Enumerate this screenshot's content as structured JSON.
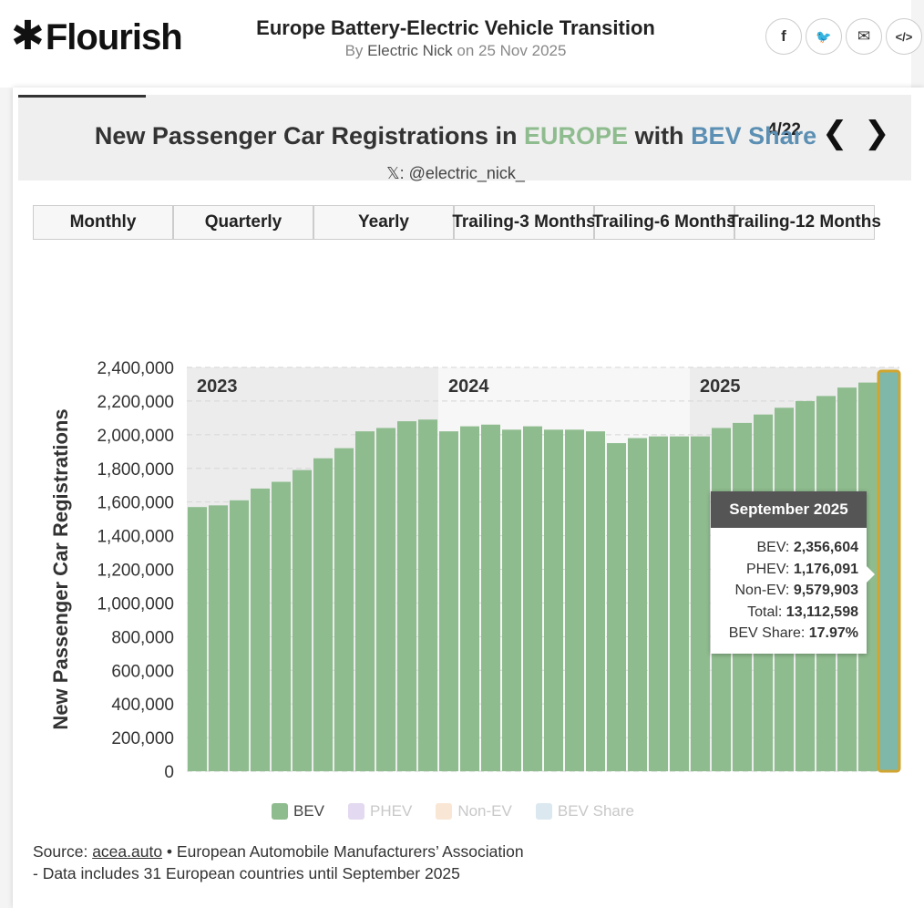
{
  "brand": {
    "logo_star": "✱",
    "logo_text": "Flourish"
  },
  "story": {
    "title": "Europe Battery-Electric Vehicle Transition",
    "by": "By",
    "author": "Electric Nick",
    "on": "on 25 Nov 2025"
  },
  "share": [
    {
      "name": "facebook-icon",
      "glyph": "f"
    },
    {
      "name": "twitter-icon",
      "glyph": "🐦"
    },
    {
      "name": "email-icon",
      "glyph": "✉"
    },
    {
      "name": "embed-icon",
      "glyph": "</>"
    }
  ],
  "nav": {
    "counter": "4/22",
    "prev": "❮",
    "next": "❯"
  },
  "title_parts": {
    "part1": "New Passenger Car Registrations in ",
    "europe": "EUROPE",
    "part2": " with ",
    "bev": "BEV Share"
  },
  "subtitle": "𝕏: @electric_nick_",
  "tabs": [
    "Monthly",
    "Quarterly",
    "Yearly",
    "Trailing-3 Months",
    "Trailing-6 Months",
    "Trailing-12 Months"
  ],
  "active_tab": 5,
  "legend": [
    {
      "label": "BEV",
      "color": "#8fbc8f",
      "active": true
    },
    {
      "label": "PHEV",
      "color": "#d9ccec",
      "active": false
    },
    {
      "label": "Non-EV",
      "color": "#f8dcc4",
      "active": false
    },
    {
      "label": "BEV Share",
      "color": "#cfe0ea",
      "active": false
    }
  ],
  "source": {
    "prefix": "Source: ",
    "link": "acea.auto",
    "rest": " • European Automobile Manufacturers’ Association",
    "line2": "- Data includes 31 European countries until September 2025"
  },
  "tooltip": {
    "title": "September 2025",
    "rows": [
      {
        "label": "BEV: ",
        "value": "2,356,604"
      },
      {
        "label": "PHEV: ",
        "value": "1,176,091"
      },
      {
        "label": "Non-EV: ",
        "value": "9,579,903"
      },
      {
        "label": "Total: ",
        "value": "13,112,598"
      },
      {
        "label": "BEV Share: ",
        "value": "17.97%"
      }
    ]
  },
  "chart_data": {
    "type": "bar",
    "ylabel": "New Passenger Car Registrations",
    "ylim": [
      0,
      2400000
    ],
    "yticks": [
      0,
      200000,
      400000,
      600000,
      800000,
      1000000,
      1200000,
      1400000,
      1600000,
      1800000,
      2000000,
      2200000,
      2400000
    ],
    "ytick_labels": [
      "0",
      "200,000",
      "400,000",
      "600,000",
      "800,000",
      "1,000,000",
      "1,200,000",
      "1,400,000",
      "1,600,000",
      "1,800,000",
      "2,000,000",
      "2,200,000",
      "2,400,000"
    ],
    "grid": true,
    "legend_position": "bottom",
    "year_bands": [
      {
        "label": "2023",
        "start": 1,
        "end": 12
      },
      {
        "label": "2024",
        "start": 13,
        "end": 24
      },
      {
        "label": "2025",
        "start": 25,
        "end": 34
      }
    ],
    "highlight_index": 34,
    "series": [
      {
        "name": "BEV",
        "color": "#8fbc8f",
        "values": [
          1570000,
          1580000,
          1610000,
          1680000,
          1720000,
          1790000,
          1860000,
          1920000,
          2020000,
          2040000,
          2080000,
          2090000,
          2020000,
          2050000,
          2060000,
          2030000,
          2050000,
          2030000,
          2030000,
          2020000,
          1950000,
          1980000,
          1990000,
          1990000,
          1990000,
          2040000,
          2070000,
          2120000,
          2160000,
          2200000,
          2230000,
          2280000,
          2310000,
          2356604
        ]
      }
    ]
  }
}
